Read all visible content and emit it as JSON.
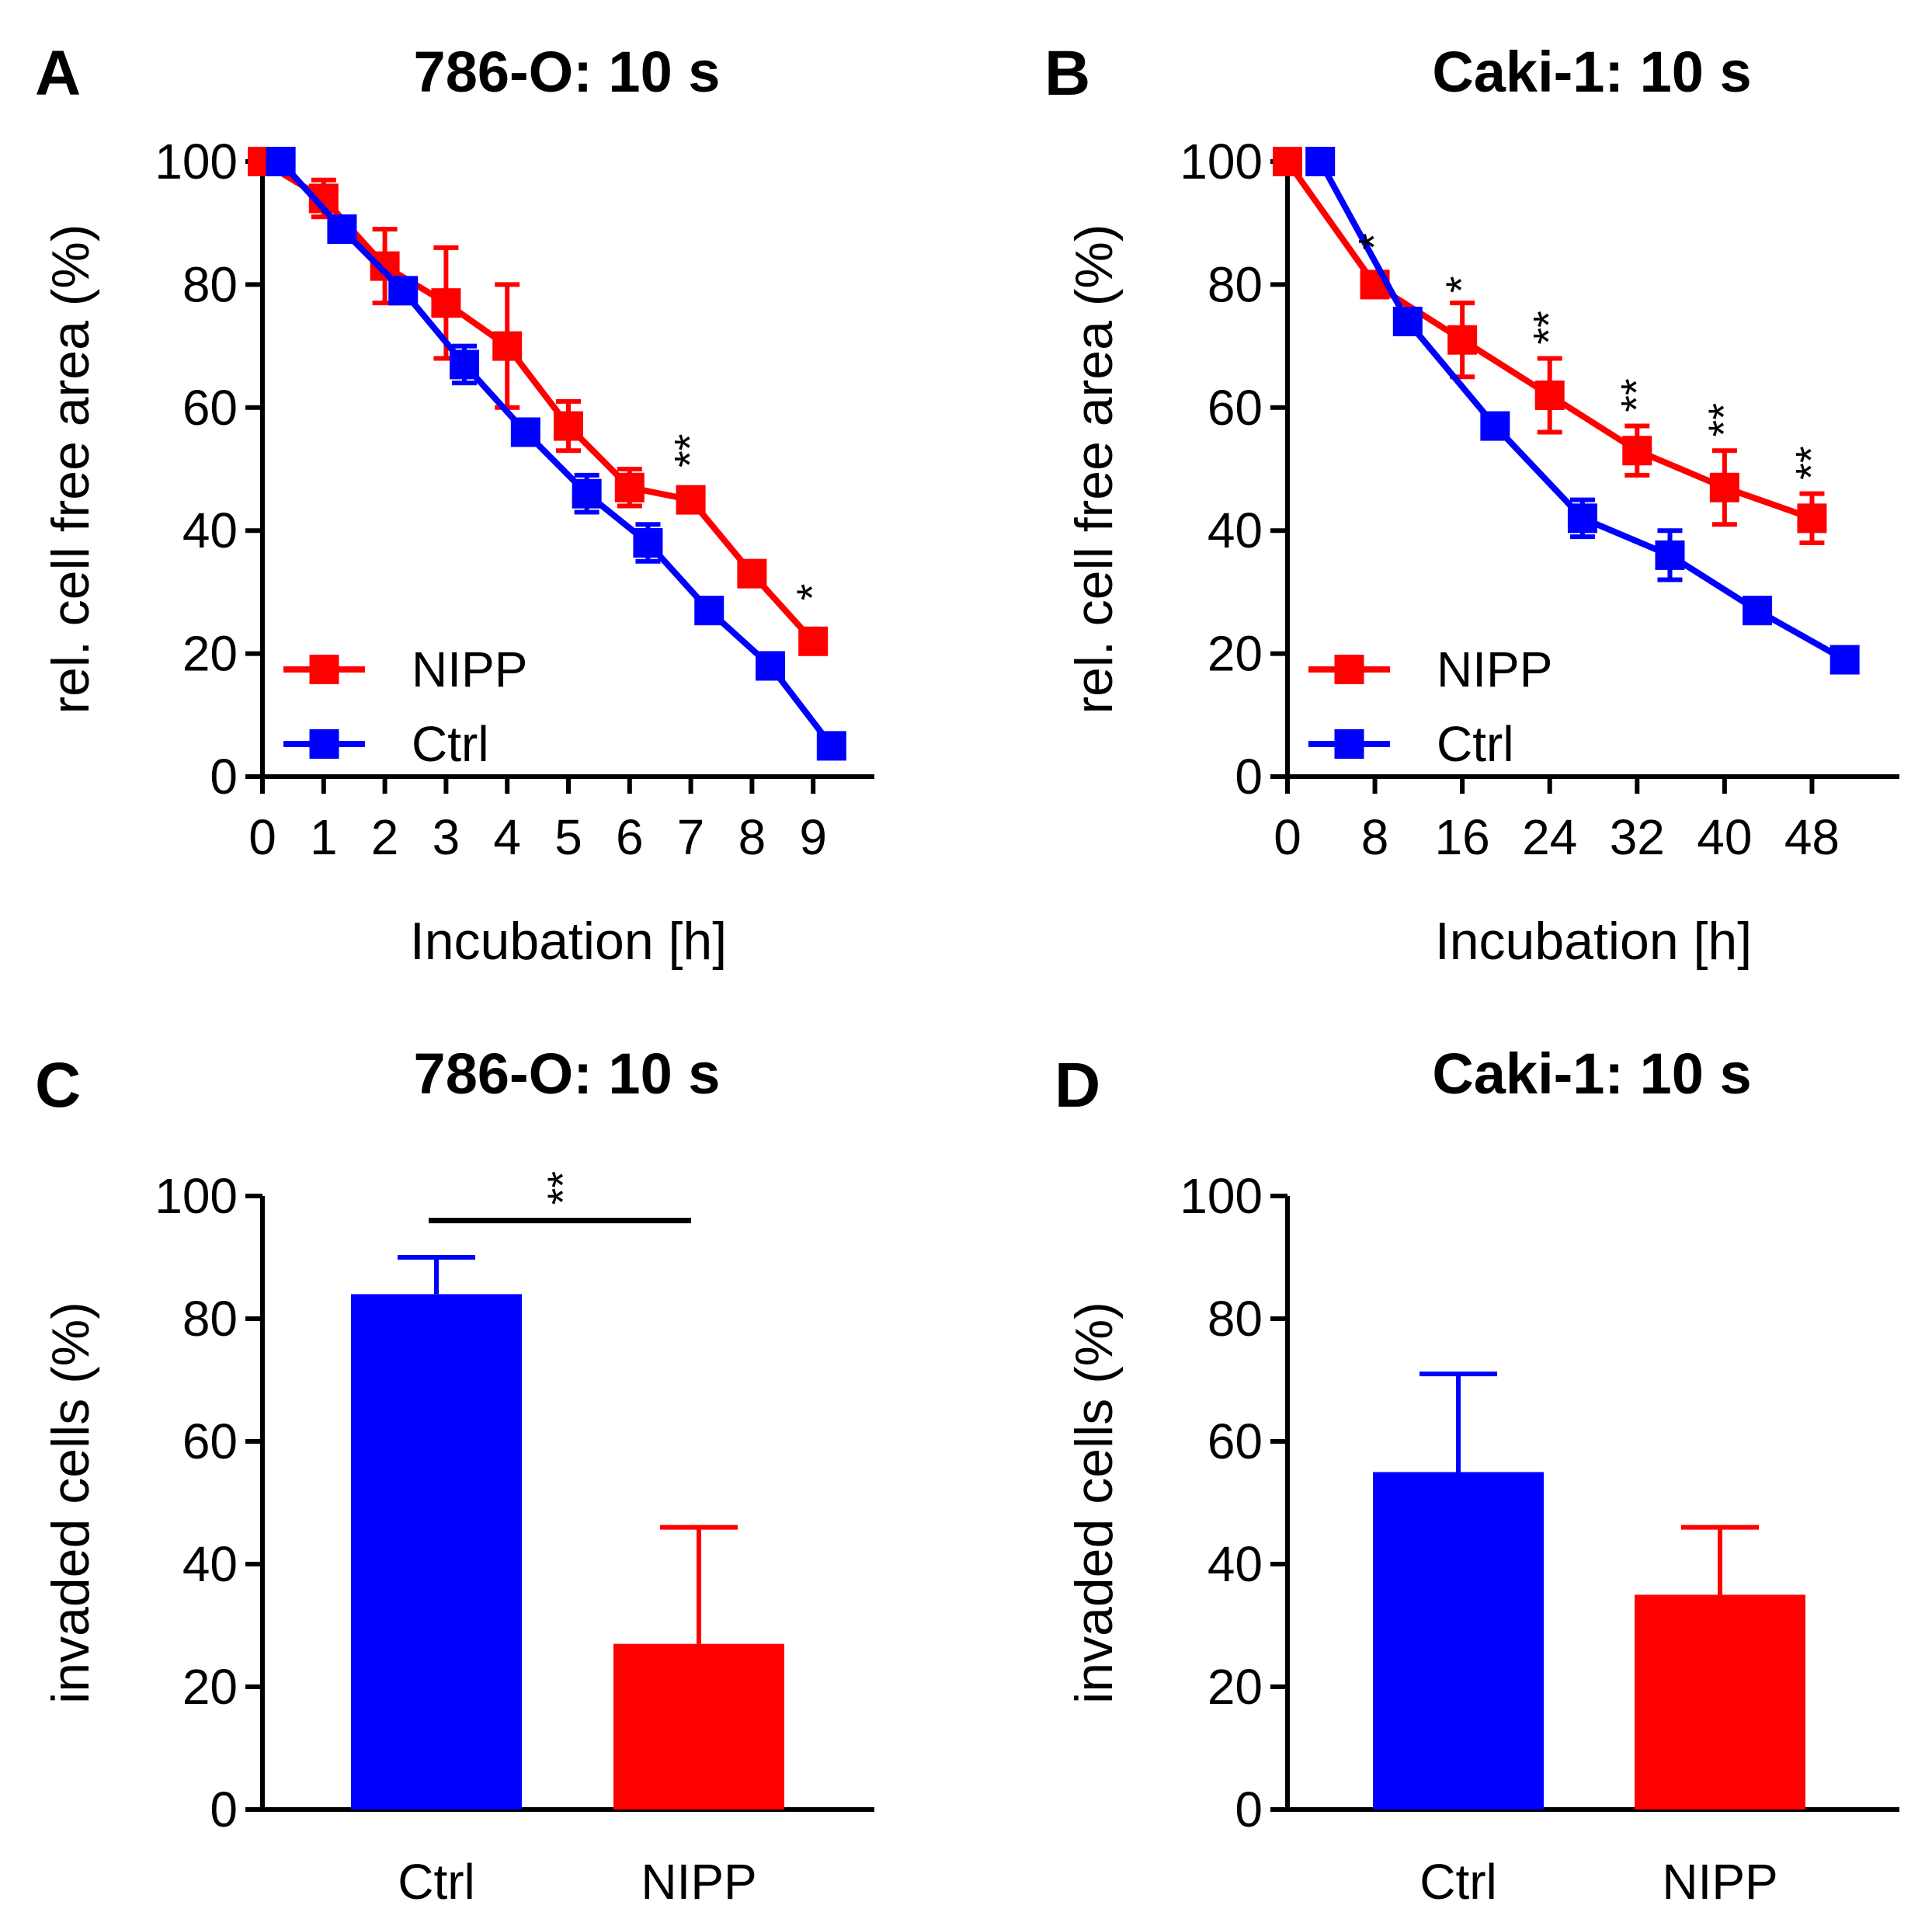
{
  "chart_data": [
    {
      "panel": "A",
      "type": "line",
      "title": "786-O: 10 s",
      "xlabel": "Incubation [h]",
      "ylabel": "rel. cell free area (%)",
      "xlim": [
        0,
        10
      ],
      "ylim": [
        0,
        100
      ],
      "x_ticks": [
        "0",
        "1",
        "2",
        "3",
        "4",
        "5",
        "6",
        "7",
        "8",
        "9"
      ],
      "y_ticks": [
        "0",
        "20",
        "40",
        "60",
        "80",
        "100"
      ],
      "x_tick_values": [
        0,
        1,
        2,
        3,
        4,
        5,
        6,
        7,
        8,
        9
      ],
      "y_tick_values": [
        0,
        20,
        40,
        60,
        80,
        100
      ],
      "legend": "bottom-left",
      "series": [
        {
          "name": "NIPP",
          "color": "#ff0000",
          "x": [
            0,
            1,
            2,
            3,
            4,
            5,
            6,
            7,
            8,
            9
          ],
          "y": [
            100,
            94,
            83,
            77,
            70,
            57,
            47,
            45,
            33,
            22
          ],
          "err": [
            0,
            3,
            6,
            9,
            10,
            4,
            3,
            2,
            1,
            1
          ]
        },
        {
          "name": "Ctrl",
          "color": "#0000ff",
          "x": [
            0.3,
            1.3,
            2.3,
            3.3,
            4.3,
            5.3,
            6.3,
            7.3,
            8.3,
            9.3
          ],
          "y": [
            100,
            89,
            79,
            67,
            56,
            46,
            38,
            27,
            18,
            5
          ],
          "err": [
            0,
            1,
            1,
            3,
            2,
            3,
            3,
            1,
            2,
            1
          ]
        }
      ],
      "annotations": [
        {
          "text": "**",
          "x": 7,
          "y": 53
        },
        {
          "text": "*",
          "x": 9,
          "y": 30
        }
      ]
    },
    {
      "panel": "B",
      "type": "line",
      "title": "Caki-1: 10 s",
      "xlabel": "Incubation [h]",
      "ylabel": "rel. cell free area (%)",
      "xlim": [
        0,
        56
      ],
      "ylim": [
        0,
        100
      ],
      "x_ticks": [
        "0",
        "8",
        "16",
        "24",
        "32",
        "40",
        "48"
      ],
      "y_ticks": [
        "0",
        "20",
        "40",
        "60",
        "80",
        "100"
      ],
      "x_tick_values": [
        0,
        8,
        16,
        24,
        32,
        40,
        48
      ],
      "y_tick_values": [
        0,
        20,
        40,
        60,
        80,
        100
      ],
      "legend": "bottom-left",
      "series": [
        {
          "name": "NIPP",
          "color": "#ff0000",
          "x": [
            0,
            8,
            16,
            24,
            32,
            40,
            48
          ],
          "y": [
            100,
            80,
            71,
            62,
            53,
            47,
            42
          ],
          "err": [
            0,
            2,
            6,
            6,
            4,
            6,
            4
          ]
        },
        {
          "name": "Ctrl",
          "color": "#0000ff",
          "x": [
            3,
            11,
            19,
            27,
            35,
            43,
            51
          ],
          "y": [
            100,
            74,
            57,
            42,
            36,
            27,
            19
          ],
          "err": [
            0,
            2,
            1,
            3,
            4,
            1,
            1
          ]
        }
      ],
      "annotations": [
        {
          "text": "*",
          "x": 8,
          "y": 87
        },
        {
          "text": "*",
          "x": 16,
          "y": 80
        },
        {
          "text": "**",
          "x": 24,
          "y": 73
        },
        {
          "text": "**",
          "x": 32,
          "y": 62
        },
        {
          "text": "**",
          "x": 40,
          "y": 58
        },
        {
          "text": "**",
          "x": 48,
          "y": 51
        }
      ]
    },
    {
      "panel": "C",
      "type": "bar",
      "title": "786-O: 10 s",
      "xlabel": "",
      "ylabel": "invaded cells (%)",
      "ylim": [
        0,
        100
      ],
      "y_ticks": [
        "0",
        "20",
        "40",
        "60",
        "80",
        "100"
      ],
      "y_tick_values": [
        0,
        20,
        40,
        60,
        80,
        100
      ],
      "categories": [
        "Ctrl",
        "NIPP"
      ],
      "values": [
        84,
        27
      ],
      "err": [
        6,
        19
      ],
      "colors": [
        "#0000ff",
        "#ff0000"
      ],
      "significance": {
        "text": "**",
        "between": [
          "Ctrl",
          "NIPP"
        ],
        "y": 96
      }
    },
    {
      "panel": "D",
      "type": "bar",
      "title": "Caki-1: 10 s",
      "xlabel": "",
      "ylabel": "invaded cells (%)",
      "ylim": [
        0,
        100
      ],
      "y_ticks": [
        "0",
        "20",
        "40",
        "60",
        "80",
        "100"
      ],
      "y_tick_values": [
        0,
        20,
        40,
        60,
        80,
        100
      ],
      "categories": [
        "Ctrl",
        "NIPP"
      ],
      "values": [
        55,
        35
      ],
      "err": [
        16,
        11
      ],
      "colors": [
        "#0000ff",
        "#ff0000"
      ]
    }
  ]
}
